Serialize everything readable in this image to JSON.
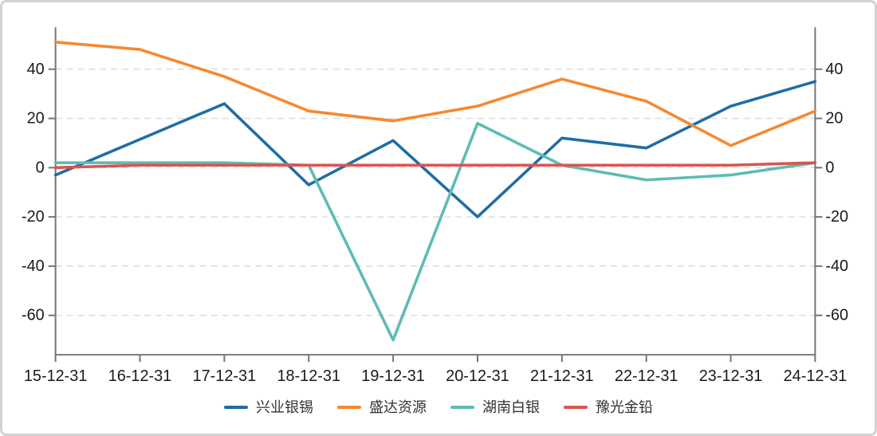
{
  "chart_data": {
    "type": "line",
    "title": "",
    "xlabel": "",
    "ylabel": "",
    "categories": [
      "15-12-31",
      "16-12-31",
      "17-12-31",
      "18-12-31",
      "19-12-31",
      "20-12-31",
      "21-12-31",
      "22-12-31",
      "23-12-31",
      "24-12-31"
    ],
    "series": [
      {
        "name": "兴业银锡",
        "color": "#1f6da4",
        "values": [
          -3,
          11.5,
          26,
          -7,
          11,
          -20,
          12,
          8,
          25,
          35
        ]
      },
      {
        "name": "盛达资源",
        "color": "#f7882f",
        "values": [
          51,
          48,
          37,
          23,
          19,
          25,
          36,
          27,
          9,
          23
        ]
      },
      {
        "name": "湖南白银",
        "color": "#5cbcb4",
        "values": [
          2,
          2,
          2,
          1,
          -70,
          18,
          1,
          -5,
          -3,
          2
        ]
      },
      {
        "name": "豫光金铅",
        "color": "#da5450",
        "values": [
          0,
          1,
          1,
          1,
          1,
          1,
          1,
          1,
          1,
          2
        ]
      }
    ],
    "y_ticks": [
      40,
      20,
      0,
      -20,
      -40,
      -60
    ],
    "ylim": [
      -76,
      57
    ],
    "grid": "horizontal-dashed",
    "legend_position": "bottom",
    "dual_y_axis": true
  },
  "colors": {
    "axis": "#757575",
    "grid": "#dadada",
    "tick_label": "#1a1a1a",
    "legend_text": "#333333",
    "card_border": "#d2d2d2",
    "background": "#ffffff"
  }
}
